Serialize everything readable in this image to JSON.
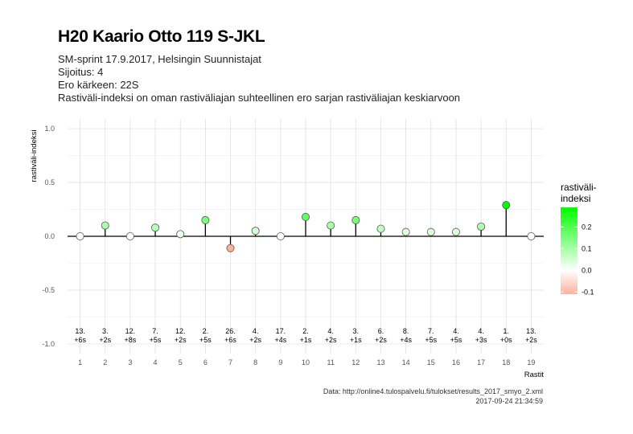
{
  "chart_data": {
    "type": "lollipop",
    "title": "H20 Kaario Otto 119 S-JKL",
    "subtitle_lines": [
      "SM-sprint 17.9.2017, Helsingin Suunnistajat",
      "Sijoitus: 4",
      "Ero kärkeen: 22S",
      "Rastiväli-indeksi on oman rastiväliajan suhteellinen ero sarjan rastiväliajan keskiarvoon"
    ],
    "xlabel": "Rastit",
    "ylabel": "rastiväli-indeksi",
    "ylim": [
      -1.0,
      1.0
    ],
    "yticks": [
      "1.0",
      "0.5",
      "0.0",
      "-0.5",
      "-1.0"
    ],
    "ytick_values": [
      1.0,
      0.5,
      0.0,
      -0.5,
      -1.0
    ],
    "x": [
      1,
      2,
      3,
      4,
      5,
      6,
      7,
      8,
      9,
      10,
      11,
      12,
      13,
      14,
      15,
      16,
      17,
      18,
      19
    ],
    "xticks": [
      "1",
      "2",
      "3",
      "4",
      "5",
      "6",
      "7",
      "8",
      "9",
      "10",
      "11",
      "12",
      "13",
      "14",
      "15",
      "16",
      "17",
      "18",
      "19"
    ],
    "values": [
      0.0,
      0.1,
      0.0,
      0.08,
      0.02,
      0.15,
      -0.11,
      0.05,
      0.0,
      0.18,
      0.1,
      0.15,
      0.07,
      0.04,
      0.04,
      0.04,
      0.09,
      0.29,
      0.0
    ],
    "rank_labels": [
      "13.",
      "3.",
      "12.",
      "7.",
      "12.",
      "2.",
      "26.",
      "4.",
      "17.",
      "2.",
      "4.",
      "3.",
      "6.",
      "8.",
      "7.",
      "4.",
      "4.",
      "1.",
      "13."
    ],
    "diff_labels": [
      "+6s",
      "+2s",
      "+8s",
      "+5s",
      "+2s",
      "+5s",
      "+6s",
      "+2s",
      "+4s",
      "+1s",
      "+2s",
      "+1s",
      "+2s",
      "+4s",
      "+5s",
      "+5s",
      "+3s",
      "+0s",
      "+2s"
    ],
    "grid": true,
    "legend": {
      "title": "rastiväli-\nindeksi",
      "title_lines": [
        "rastiväli-",
        "indeksi"
      ],
      "placement": "right",
      "ticks": [
        "0.2",
        "0.1",
        "0.0",
        "-0.1"
      ],
      "tick_values": [
        0.2,
        0.1,
        0.0,
        -0.1
      ],
      "range": [
        -0.11,
        0.29
      ],
      "colors": {
        "high": "#00ff00",
        "mid": "#ffffff",
        "low": "#ffb09c"
      }
    }
  },
  "caption": {
    "source": "Data: http://online4.tulospalvelu.fi/tulokset/results_2017_smyo_2.xml",
    "timestamp": "2017-09-24 21:34:59"
  }
}
